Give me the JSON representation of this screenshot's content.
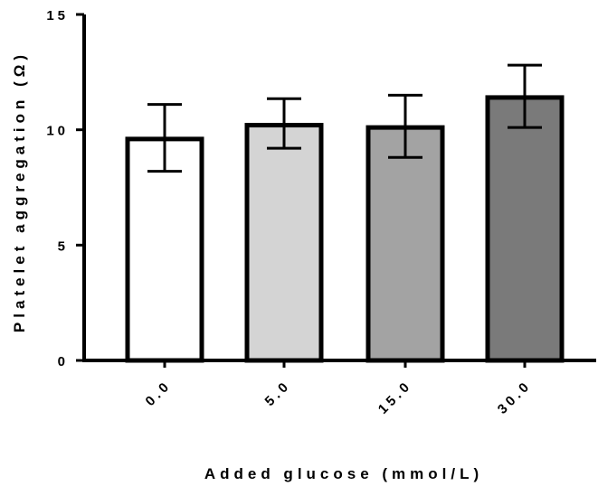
{
  "chart_data": {
    "type": "bar",
    "categories": [
      "0.0",
      "5.0",
      "15.0",
      "30.0"
    ],
    "values": [
      9.6,
      10.2,
      10.1,
      11.4
    ],
    "error_low": [
      8.2,
      9.2,
      8.8,
      10.1
    ],
    "error_high": [
      11.1,
      11.35,
      11.5,
      12.8
    ],
    "bar_colors": [
      "#ffffff",
      "#d4d4d4",
      "#a3a3a3",
      "#7a7a7a"
    ],
    "xlabel": "Added glucose (mmol/L)",
    "ylabel": "Platelet aggregation (Ω)",
    "ylim": [
      0,
      15
    ],
    "yticks": [
      0,
      5,
      10,
      15
    ],
    "ytick_labels": [
      "0",
      "5",
      "10",
      "15"
    ],
    "grid": false
  }
}
